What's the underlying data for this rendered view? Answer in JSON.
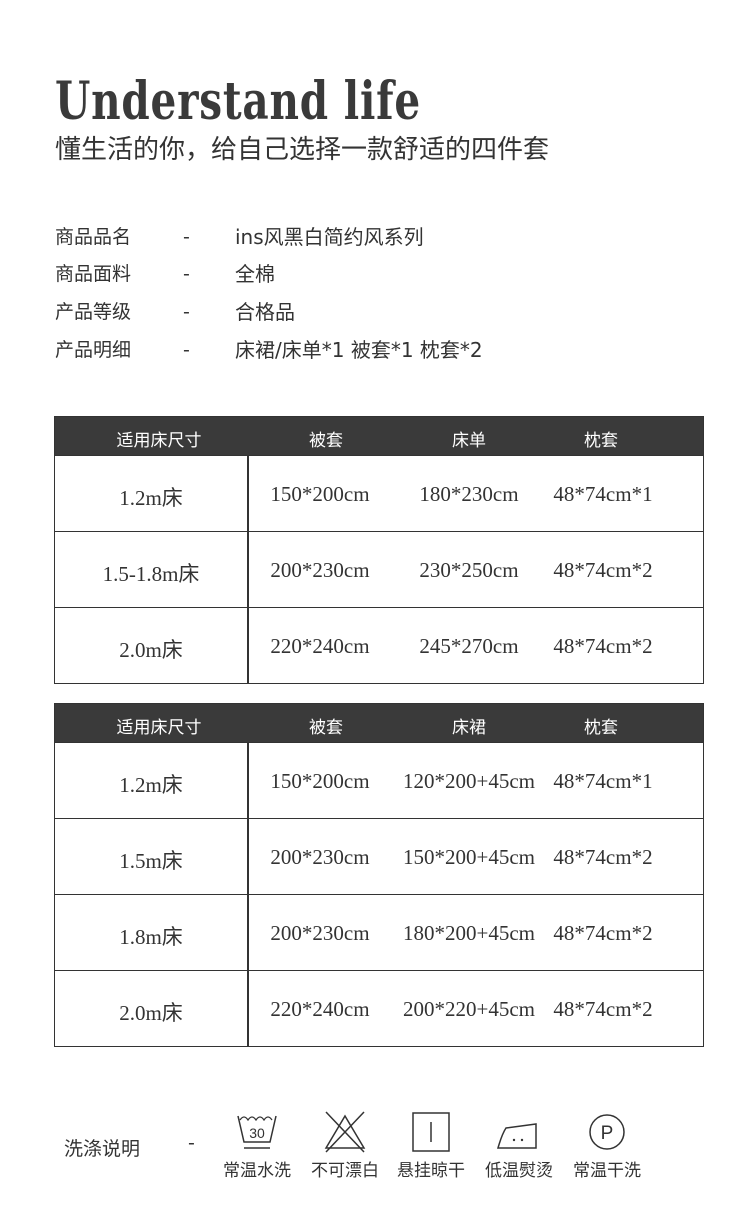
{
  "header": {
    "title": "Understand life",
    "subtitle": "懂生活的你，给自己选择一款舒适的四件套"
  },
  "specs": [
    {
      "label": "商品品名",
      "dash": "-",
      "value": "ins风黑白简约风系列"
    },
    {
      "label": "商品面料",
      "dash": "-",
      "value": "全棉"
    },
    {
      "label": "产品等级",
      "dash": "-",
      "value": "合格品"
    },
    {
      "label": "产品明细",
      "dash": "-",
      "value": "床裙/床单*1 被套*1 枕套*2"
    }
  ],
  "tables": [
    {
      "headers": [
        "适用床尺寸",
        "被套",
        "床单",
        "枕套"
      ],
      "rows": [
        [
          "1.2m床",
          "150*200cm",
          "180*230cm",
          "48*74cm*1"
        ],
        [
          "1.5-1.8m床",
          "200*230cm",
          "230*250cm",
          "48*74cm*2"
        ],
        [
          "2.0m床",
          "220*240cm",
          "245*270cm",
          "48*74cm*2"
        ]
      ]
    },
    {
      "headers": [
        "适用床尺寸",
        "被套",
        "床裙",
        "枕套"
      ],
      "rows": [
        [
          "1.2m床",
          "150*200cm",
          "120*200+45cm",
          "48*74cm*1"
        ],
        [
          "1.5m床",
          "200*230cm",
          "150*200+45cm",
          "48*74cm*2"
        ],
        [
          "1.8m床",
          "200*230cm",
          "180*200+45cm",
          "48*74cm*2"
        ],
        [
          "2.0m床",
          "220*240cm",
          "200*220+45cm",
          "48*74cm*2"
        ]
      ]
    }
  ],
  "washing": {
    "label": "洗涤说明",
    "dash": "-",
    "items": [
      {
        "icon": "wash-30-icon",
        "symbol": "30",
        "label": "常温水洗"
      },
      {
        "icon": "no-bleach-icon",
        "label": "不可漂白"
      },
      {
        "icon": "hang-dry-icon",
        "label": "悬挂晾干"
      },
      {
        "icon": "low-iron-icon",
        "label": "低温熨烫"
      },
      {
        "icon": "dry-clean-icon",
        "symbol": "P",
        "label": "常温干洗"
      }
    ]
  }
}
